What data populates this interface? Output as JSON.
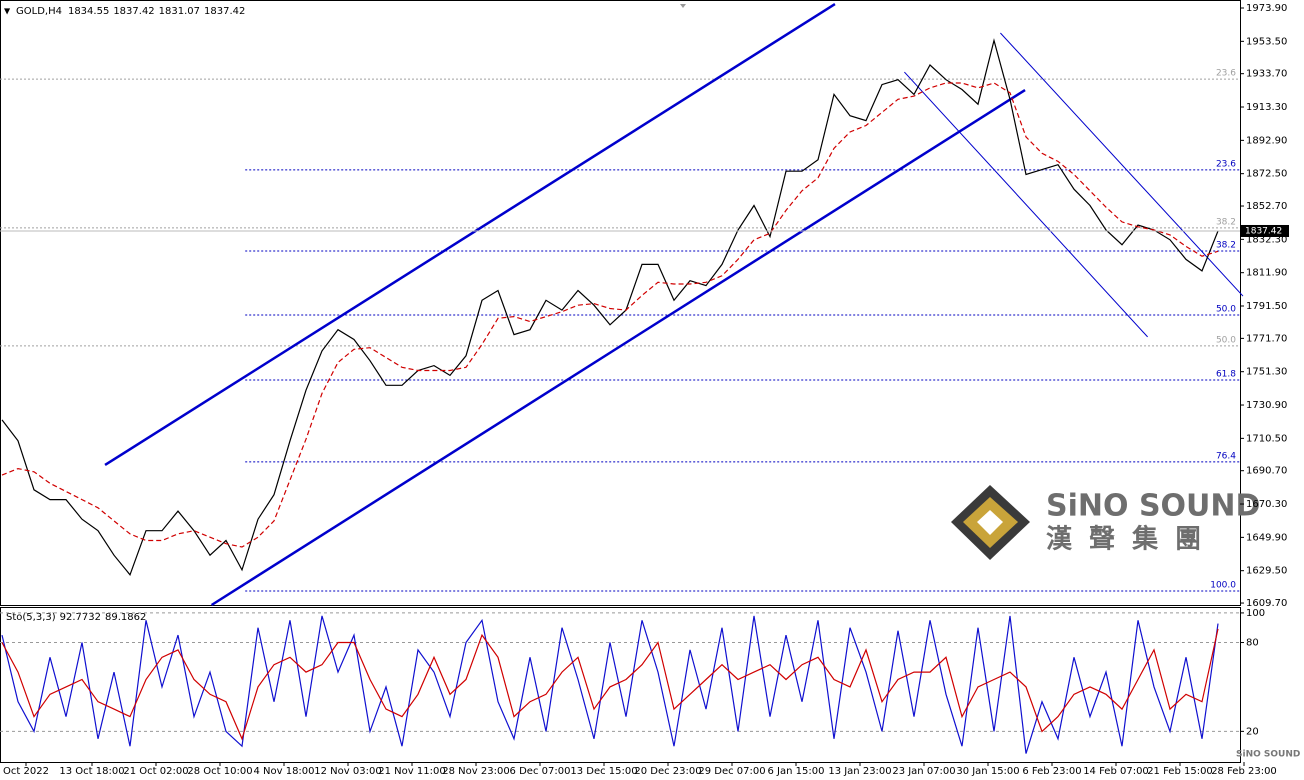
{
  "header": {
    "symbol": "GOLD,H4",
    "open": 1834.55,
    "high": 1837.42,
    "low": 1831.07,
    "close": 1837.42
  },
  "logo": {
    "name": "SiNO SOUND",
    "chinese": "漢 聲 集 團",
    "watermark": "SiNO SOUND"
  },
  "chart_data": [
    {
      "type": "line",
      "series": [
        {
          "color": "#000000",
          "values": [
            1721.8,
            1709,
            1679,
            1673,
            1673,
            1661,
            1654,
            1639,
            1627,
            1654,
            1654,
            1666,
            1654,
            1639,
            1648,
            1630,
            1661,
            1676,
            1709,
            1740,
            1764,
            1777,
            1771,
            1758,
            1743,
            1743,
            1752,
            1755,
            1749,
            1761,
            1795,
            1801,
            1774,
            1777,
            1795,
            1789,
            1801,
            1792,
            1780,
            1789,
            1817,
            1817,
            1795,
            1807,
            1804,
            1817,
            1838,
            1853,
            1834,
            1874,
            1874,
            1881,
            1921,
            1908,
            1905,
            1927,
            1930,
            1921,
            1939,
            1930,
            1924,
            1915,
            1954,
            1918,
            1872,
            1875,
            1878,
            1863,
            1853,
            1838,
            1829,
            1841,
            1838,
            1832,
            1820,
            1813,
            1837.42
          ]
        },
        {
          "color": "#d00000",
          "dash": true,
          "values": [
            1688,
            1692,
            1690,
            1683,
            1678,
            1673,
            1668,
            1660,
            1652,
            1648,
            1648,
            1652,
            1654,
            1650,
            1646,
            1644,
            1650,
            1660,
            1685,
            1710,
            1738,
            1757,
            1765,
            1766,
            1760,
            1754,
            1752,
            1752,
            1752,
            1754,
            1768,
            1784,
            1785,
            1782,
            1785,
            1788,
            1792,
            1793,
            1790,
            1789,
            1798,
            1806,
            1805,
            1805,
            1806,
            1810,
            1820,
            1832,
            1836,
            1850,
            1862,
            1870,
            1888,
            1898,
            1902,
            1910,
            1918,
            1920,
            1925,
            1928,
            1928,
            1925,
            1928,
            1922,
            1895,
            1885,
            1880,
            1872,
            1862,
            1852,
            1843,
            1840,
            1838,
            1835,
            1828,
            1822,
            1825
          ]
        }
      ],
      "xlim": [
        -0.125,
        77.375
      ],
      "ylim": [
        1608.5,
        1978.8
      ],
      "yticks": [
        {
          "value": 1973.9,
          "label": "1973.90"
        },
        {
          "value": 1953.5,
          "label": "1953.50"
        },
        {
          "value": 1933.7,
          "label": "1933.70"
        },
        {
          "value": 1913.3,
          "label": "1913.30"
        },
        {
          "value": 1892.9,
          "label": "1892.90"
        },
        {
          "value": 1872.5,
          "label": "1872.50"
        },
        {
          "value": 1852.7,
          "label": "1852.70"
        },
        {
          "value": 1832.3,
          "label": "1832.30"
        },
        {
          "value": 1811.9,
          "label": "1811.90"
        },
        {
          "value": 1791.5,
          "label": "1791.50"
        },
        {
          "value": 1771.7,
          "label": "1771.70"
        },
        {
          "value": 1751.3,
          "label": "1751.30"
        },
        {
          "value": 1730.9,
          "label": "1730.90"
        },
        {
          "value": 1710.5,
          "label": "1710.50"
        },
        {
          "value": 1690.7,
          "label": "1690.70"
        },
        {
          "value": 1670.3,
          "label": "1670.30"
        },
        {
          "value": 1649.9,
          "label": "1649.90"
        },
        {
          "value": 1629.5,
          "label": "1629.50"
        },
        {
          "value": 1609.7,
          "label": "1609.70"
        }
      ],
      "fib_levels": [
        {
          "price": 1930.4,
          "label": "23.6",
          "color": "#a0a0a0",
          "start": -0.125
        },
        {
          "price": 1839.3,
          "label": "38.2",
          "color": "#a0a0a0",
          "start": -0.125
        },
        {
          "price": 1767.1,
          "label": "50.0",
          "color": "#a0a0a0",
          "start": -0.125
        },
        {
          "price": 1874.8,
          "label": "23.6",
          "color": "#0000c0",
          "start": 15.2
        },
        {
          "price": 1825.2,
          "label": "38.2",
          "color": "#0000c0",
          "start": 15.2
        },
        {
          "price": 1786.0,
          "label": "50.0",
          "color": "#0000c0",
          "start": 15.2
        },
        {
          "price": 1746.2,
          "label": "61.8",
          "color": "#0000c0",
          "start": 15.2
        },
        {
          "price": 1696.1,
          "label": "76.4",
          "color": "#0000c0",
          "start": 15.2
        },
        {
          "price": 1617.1,
          "label": "100.0",
          "color": "#0000c0",
          "start": 15.2
        }
      ],
      "trendlines": [
        {
          "points": [
            [
              6.44,
              1694.2
            ],
            [
              52.06,
              1976.3
            ]
          ],
          "color": "#0000cc",
          "width": 2.5
        },
        {
          "points": [
            [
              13.1,
              1608.5
            ],
            [
              63.94,
              1923.7
            ]
          ],
          "color": "#0000cc",
          "width": 2.5
        },
        {
          "points": [
            [
              62.4,
              1958.6
            ],
            [
              77.56,
              1797.6
            ]
          ],
          "color": "#0000cc",
          "width": 1
        },
        {
          "points": [
            [
              56.4,
              1934.7
            ],
            [
              71.6,
              1772.6
            ]
          ],
          "color": "#0000cc",
          "width": 1
        }
      ]
    },
    {
      "type": "line",
      "title": "Sto(5,3,3)",
      "series": [
        {
          "color": "#1010d0",
          "values": [
            85,
            40,
            20,
            70,
            30,
            80,
            15,
            60,
            10,
            95,
            50,
            85,
            30,
            60,
            20,
            10,
            90,
            40,
            95,
            30,
            98,
            60,
            85,
            20,
            50,
            10,
            75,
            60,
            30,
            80,
            95,
            40,
            15,
            70,
            20,
            90,
            55,
            15,
            80,
            30,
            95,
            60,
            10,
            75,
            35,
            90,
            20,
            98,
            30,
            85,
            40,
            95,
            15,
            90,
            60,
            20,
            88,
            30,
            95,
            45,
            10,
            90,
            20,
            98,
            5,
            40,
            15,
            70,
            30,
            60,
            10,
            95,
            50,
            20,
            70,
            15,
            92.7732
          ]
        },
        {
          "color": "#d00000",
          "values": [
            80,
            60,
            30,
            45,
            50,
            55,
            40,
            35,
            30,
            55,
            70,
            75,
            55,
            45,
            40,
            15,
            50,
            65,
            70,
            60,
            65,
            80,
            80,
            55,
            35,
            30,
            45,
            70,
            45,
            55,
            85,
            70,
            30,
            40,
            45,
            60,
            70,
            35,
            50,
            55,
            65,
            80,
            35,
            45,
            55,
            65,
            55,
            60,
            65,
            55,
            65,
            70,
            55,
            50,
            75,
            40,
            55,
            60,
            60,
            70,
            30,
            50,
            55,
            60,
            50,
            20,
            30,
            45,
            50,
            45,
            35,
            55,
            75,
            35,
            45,
            40,
            89.1862
          ]
        }
      ],
      "xlim": [
        -0.125,
        77.375
      ],
      "ylim": [
        -0.7,
        104
      ],
      "yticks": [
        20,
        80,
        100
      ],
      "grid": true,
      "xticks": [
        {
          "value": 1.5,
          "label": "Oct 2022"
        },
        {
          "value": 5.625,
          "label": "13 Oct 18:00"
        },
        {
          "value": 9.625,
          "label": "21 Oct 02:00"
        },
        {
          "value": 13.625,
          "label": "28 Oct 10:00"
        },
        {
          "value": 17.625,
          "label": "4 Nov 18:00"
        },
        {
          "value": 21.625,
          "label": "12 Nov 03:00"
        },
        {
          "value": 25.625,
          "label": "21 Nov 11:00"
        },
        {
          "value": 29.625,
          "label": "28 Nov 23:00"
        },
        {
          "value": 33.625,
          "label": "6 Dec 07:00"
        },
        {
          "value": 37.625,
          "label": "13 Dec 15:00"
        },
        {
          "value": 41.625,
          "label": "20 Dec 23:00"
        },
        {
          "value": 45.625,
          "label": "29 Dec 07:00"
        },
        {
          "value": 49.625,
          "label": "6 Jan 15:00"
        },
        {
          "value": 53.625,
          "label": "13 Jan 23:00"
        },
        {
          "value": 57.625,
          "label": "23 Jan 07:00"
        },
        {
          "value": 61.625,
          "label": "30 Jan 15:00"
        },
        {
          "value": 65.625,
          "label": "6 Feb 23:00"
        },
        {
          "value": 69.625,
          "label": "14 Feb 07:00"
        },
        {
          "value": 73.625,
          "label": "21 Feb 15:00"
        },
        {
          "value": 77.625,
          "label": "28 Feb 23:00"
        }
      ]
    }
  ]
}
